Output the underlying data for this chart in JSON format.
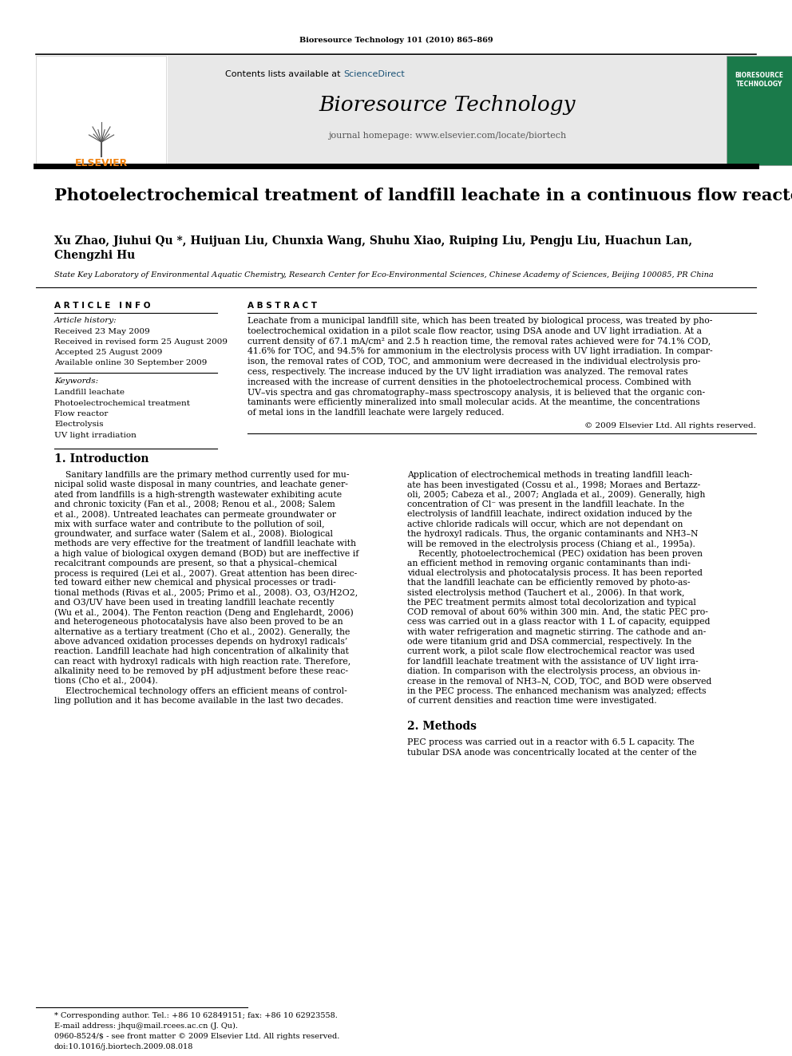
{
  "page_width": 9.92,
  "page_height": 13.23,
  "bg_color": "#ffffff",
  "journal_ref": "Bioresource Technology 101 (2010) 865–869",
  "journal_name": "Bioresource Technology",
  "journal_homepage": "journal homepage: www.elsevier.com/locate/biortech",
  "contents_plain": "Contents lists available at ",
  "contents_sd": "ScienceDirect",
  "sciencedirect_color": "#1a5276",
  "elsevier_color": "#f0820f",
  "header_bg": "#e8e8e8",
  "article_title": "Photoelectrochemical treatment of landfill leachate in a continuous flow reactor",
  "authors": "Xu Zhao, Jiuhui Qu *, Huijuan Liu, Chunxia Wang, Shuhu Xiao, Ruiping Liu, Pengju Liu, Huachun Lan,",
  "authors2": "Chengzhi Hu",
  "affiliation": "State Key Laboratory of Environmental Aquatic Chemistry, Research Center for Eco-Environmental Sciences, Chinese Academy of Sciences, Beijing 100085, PR China",
  "article_info_title": "A R T I C L E   I N F O",
  "article_history_label": "Article history:",
  "received": "Received 23 May 2009",
  "received_revised": "Received in revised form 25 August 2009",
  "accepted": "Accepted 25 August 2009",
  "available": "Available online 30 September 2009",
  "keywords_label": "Keywords:",
  "keywords": [
    "Landfill leachate",
    "Photoelectrochemical treatment",
    "Flow reactor",
    "Electrolysis",
    "UV light irradiation"
  ],
  "abstract_title": "A B S T R A C T",
  "abstract_lines": [
    "Leachate from a municipal landfill site, which has been treated by biological process, was treated by pho-",
    "toelectrochemical oxidation in a pilot scale flow reactor, using DSA anode and UV light irradiation. At a",
    "current density of 67.1 mA/cm² and 2.5 h reaction time, the removal rates achieved were for 74.1% COD,",
    "41.6% for TOC, and 94.5% for ammonium in the electrolysis process with UV light irradiation. In compar-",
    "ison, the removal rates of COD, TOC, and ammonium were decreased in the individual electrolysis pro-",
    "cess, respectively. The increase induced by the UV light irradiation was analyzed. The removal rates",
    "increased with the increase of current densities in the photoelectrochemical process. Combined with",
    "UV–vis spectra and gas chromatography–mass spectroscopy analysis, it is believed that the organic con-",
    "taminants were efficiently mineralized into small molecular acids. At the meantime, the concentrations",
    "of metal ions in the landfill leachate were largely reduced."
  ],
  "copyright": "© 2009 Elsevier Ltd. All rights reserved.",
  "intro_title": "1. Introduction",
  "intro_left_lines": [
    "    Sanitary landfills are the primary method currently used for mu-",
    "nicipal solid waste disposal in many countries, and leachate gener-",
    "ated from landfills is a high-strength wastewater exhibiting acute",
    "and chronic toxicity (Fan et al., 2008; Renou et al., 2008; Salem",
    "et al., 2008). Untreated leachates can permeate groundwater or",
    "mix with surface water and contribute to the pollution of soil,",
    "groundwater, and surface water (Salem et al., 2008). Biological",
    "methods are very effective for the treatment of landfill leachate with",
    "a high value of biological oxygen demand (BOD) but are ineffective if",
    "recalcitrant compounds are present, so that a physical–chemical",
    "process is required (Lei et al., 2007). Great attention has been direc-",
    "ted toward either new chemical and physical processes or tradi-",
    "tional methods (Rivas et al., 2005; Primo et al., 2008). O3, O3/H2O2,",
    "and O3/UV have been used in treating landfill leachate recently",
    "(Wu et al., 2004). The Fenton reaction (Deng and Englehardt, 2006)",
    "and heterogeneous photocatalysis have also been proved to be an",
    "alternative as a tertiary treatment (Cho et al., 2002). Generally, the",
    "above advanced oxidation processes depends on hydroxyl radicals’",
    "reaction. Landfill leachate had high concentration of alkalinity that",
    "can react with hydroxyl radicals with high reaction rate. Therefore,",
    "alkalinity need to be removed by pH adjustment before these reac-",
    "tions (Cho et al., 2004).",
    "    Electrochemical technology offers an efficient means of control-",
    "ling pollution and it has become available in the last two decades."
  ],
  "intro_right_lines": [
    "Application of electrochemical methods in treating landfill leach-",
    "ate has been investigated (Cossu et al., 1998; Moraes and Bertazz-",
    "oli, 2005; Cabeza et al., 2007; Anglada et al., 2009). Generally, high",
    "concentration of Cl⁻ was present in the landfill leachate. In the",
    "electrolysis of landfill leachate, indirect oxidation induced by the",
    "active chloride radicals will occur, which are not dependant on",
    "the hydroxyl radicals. Thus, the organic contaminants and NH3–N",
    "will be removed in the electrolysis process (Chiang et al., 1995a).",
    "    Recently, photoelectrochemical (PEC) oxidation has been proven",
    "an efficient method in removing organic contaminants than indi-",
    "vidual electrolysis and photocatalysis process. It has been reported",
    "that the landfill leachate can be efficiently removed by photo-as-",
    "sisted electrolysis method (Tauchert et al., 2006). In that work,",
    "the PEC treatment permits almost total decolorization and typical",
    "COD removal of about 60% within 300 min. And, the static PEC pro-",
    "cess was carried out in a glass reactor with 1 L of capacity, equipped",
    "with water refrigeration and magnetic stirring. The cathode and an-",
    "ode were titanium grid and DSA commercial, respectively. In the",
    "current work, a pilot scale flow electrochemical reactor was used",
    "for landfill leachate treatment with the assistance of UV light irra-",
    "diation. In comparison with the electrolysis process, an obvious in-",
    "crease in the removal of NH3–N, COD, TOC, and BOD were observed",
    "in the PEC process. The enhanced mechanism was analyzed; effects",
    "of current densities and reaction time were investigated."
  ],
  "methods_title": "2. Methods",
  "methods_lines": [
    "PEC process was carried out in a reactor with 6.5 L capacity. The",
    "tubular DSA anode was concentrically located at the center of the"
  ],
  "footnote1": "* Corresponding author. Tel.: +86 10 62849151; fax: +86 10 62923558.",
  "footnote2": "E-mail address: jhqu@mail.rcees.ac.cn (J. Qu).",
  "footnote3": "0960-8524/$ - see front matter © 2009 Elsevier Ltd. All rights reserved.",
  "footnote4": "doi:10.1016/j.biortech.2009.08.018"
}
